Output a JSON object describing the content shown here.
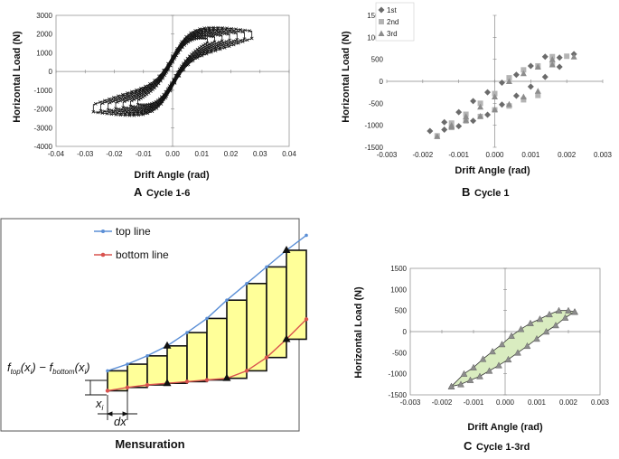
{
  "chart_data": [
    {
      "id": "A",
      "type": "scatter",
      "caption": {
        "letter": "A",
        "text": "Cycle 1-6"
      },
      "xlabel": "Drift Angle (rad)",
      "ylabel": "Horizontal Load (N)",
      "xlim": [
        -0.04,
        0.04
      ],
      "ylim": [
        -4000,
        3000
      ],
      "xticks": [
        "-0.04",
        "-0.03",
        "-0.02",
        "-0.01",
        "0.00",
        "0.01",
        "0.02",
        "0.03",
        "0.04"
      ],
      "yticks": [
        "3000",
        "2000",
        "1000",
        "0",
        "-1000",
        "-2000",
        "-3000",
        "-4000"
      ],
      "grid": false,
      "marker": "cross",
      "amplitudes": [
        0.014,
        0.017,
        0.02,
        0.023,
        0.026,
        0.029,
        0.032
      ]
    },
    {
      "id": "B",
      "type": "scatter",
      "caption": {
        "letter": "B",
        "text": "Cycle 1"
      },
      "xlabel": "Drift Angle (rad)",
      "ylabel": "Horizontal Load (N)",
      "xlim": [
        -0.003,
        0.003
      ],
      "ylim": [
        -1500,
        1500
      ],
      "xticks": [
        "-0.003",
        "-0.002",
        "-0.001",
        "0.000",
        "0.001",
        "0.002",
        "0.003"
      ],
      "yticks": [
        "1500",
        "1000",
        "500",
        "0",
        "-500",
        "-1000",
        "-1500"
      ],
      "grid": false,
      "legend_position": "top-left",
      "series": [
        {
          "name": "1st",
          "marker": "diamond",
          "color": "#6b6b6b",
          "x": [
            0.0022,
            0.0018,
            0.0014,
            0.001,
            0.0006,
            0.0002,
            -0.0002,
            -0.0006,
            -0.001,
            -0.0014,
            -0.0018,
            -0.0014,
            -0.001,
            -0.0006,
            -0.0002,
            0.0002,
            0.0006,
            0.001,
            0.0014,
            0.0018
          ],
          "y": [
            620,
            330,
            100,
            -120,
            -330,
            -530,
            -760,
            -900,
            -1020,
            -1100,
            -1130,
            -930,
            -700,
            -450,
            -250,
            -30,
            150,
            350,
            560,
            540
          ]
        },
        {
          "name": "2nd",
          "marker": "square",
          "color": "#b4b4b4",
          "x": [
            0.002,
            0.0016,
            0.0012,
            0.0008,
            0.0004,
            0.0,
            -0.0004,
            -0.0008,
            -0.0012,
            -0.0016,
            -0.0012,
            -0.0008,
            -0.0004,
            0.0,
            0.0004,
            0.0008,
            0.0012,
            0.0016
          ],
          "y": [
            570,
            380,
            -320,
            -420,
            -560,
            -650,
            -800,
            -900,
            -1050,
            -1240,
            -950,
            -750,
            -500,
            -280,
            80,
            260,
            350,
            560
          ]
        },
        {
          "name": "3rd",
          "marker": "triangle",
          "color": "#8c8c8c",
          "x": [
            0.0022,
            0.0016,
            0.0012,
            0.0008,
            0.0004,
            0.0,
            -0.0004,
            -0.0008,
            -0.0012,
            -0.0016,
            -0.0012,
            -0.0008,
            -0.0004,
            0.0,
            0.0004,
            0.0008,
            0.0012,
            0.0016
          ],
          "y": [
            560,
            380,
            -220,
            -350,
            -520,
            -640,
            -790,
            -880,
            -1030,
            -1250,
            -1000,
            -800,
            -580,
            -350,
            0,
            180,
            330,
            500
          ]
        }
      ]
    },
    {
      "id": "C",
      "type": "area",
      "caption": {
        "letter": "C",
        "text": "Cycle 1-3rd"
      },
      "xlabel": "Drift Angle (rad)",
      "ylabel": "Horizontal Load (N)",
      "xlim": [
        -0.003,
        0.003
      ],
      "ylim": [
        -1500,
        1500
      ],
      "xticks": [
        "-0.003",
        "-0.002",
        "-0.001",
        "0.000",
        "0.001",
        "0.002",
        "0.003"
      ],
      "yticks": [
        "1500",
        "1000",
        "500",
        "0",
        "-500",
        "-1000",
        "-1500"
      ],
      "grid": false,
      "fill_color": "#d9ecc0",
      "upper": {
        "x": [
          -0.0017,
          -0.0013,
          -0.001,
          -0.0007,
          -0.0004,
          -0.0001,
          0.0002,
          0.0005,
          0.0008,
          0.0011,
          0.0014,
          0.0017,
          0.002,
          0.0022
        ],
        "y": [
          -1300,
          -1000,
          -850,
          -650,
          -470,
          -300,
          -100,
          60,
          200,
          300,
          410,
          500,
          500,
          470
        ]
      },
      "lower": {
        "x": [
          -0.0017,
          -0.0014,
          -0.0011,
          -0.0008,
          -0.0005,
          -0.0002,
          0.0001,
          0.0004,
          0.0007,
          0.001,
          0.0013,
          0.0016,
          0.0019,
          0.0022
        ],
        "y": [
          -1300,
          -1250,
          -1150,
          -1060,
          -930,
          -800,
          -660,
          -500,
          -340,
          -170,
          0,
          150,
          330,
          470
        ]
      }
    },
    {
      "id": "D",
      "type": "line",
      "caption": {
        "text": "Mensuration"
      },
      "series": [
        {
          "name": "top line",
          "color": "#5b8fd6",
          "y": [
            0.3,
            0.38,
            0.48,
            0.6,
            0.76,
            0.93,
            1.15,
            1.35,
            1.55,
            1.75,
            1.93
          ]
        },
        {
          "name": "bottom line",
          "color": "#d9534f",
          "y": [
            0.06,
            0.1,
            0.13,
            0.15,
            0.17,
            0.19,
            0.21,
            0.3,
            0.46,
            0.68,
            0.92
          ]
        }
      ],
      "bar_fill": "#ffff99",
      "annotations": {
        "formula_f1": "f",
        "formula_top": "top",
        "formula_mid": "(x",
        "formula_i1": "i",
        "formula_close_minus": ") − f",
        "formula_bottom": "bottom",
        "formula_mid2": "(x",
        "formula_i2": "i",
        "formula_close": ")",
        "xi_x": "x",
        "xi_i": "i",
        "dx": "dx"
      }
    }
  ]
}
